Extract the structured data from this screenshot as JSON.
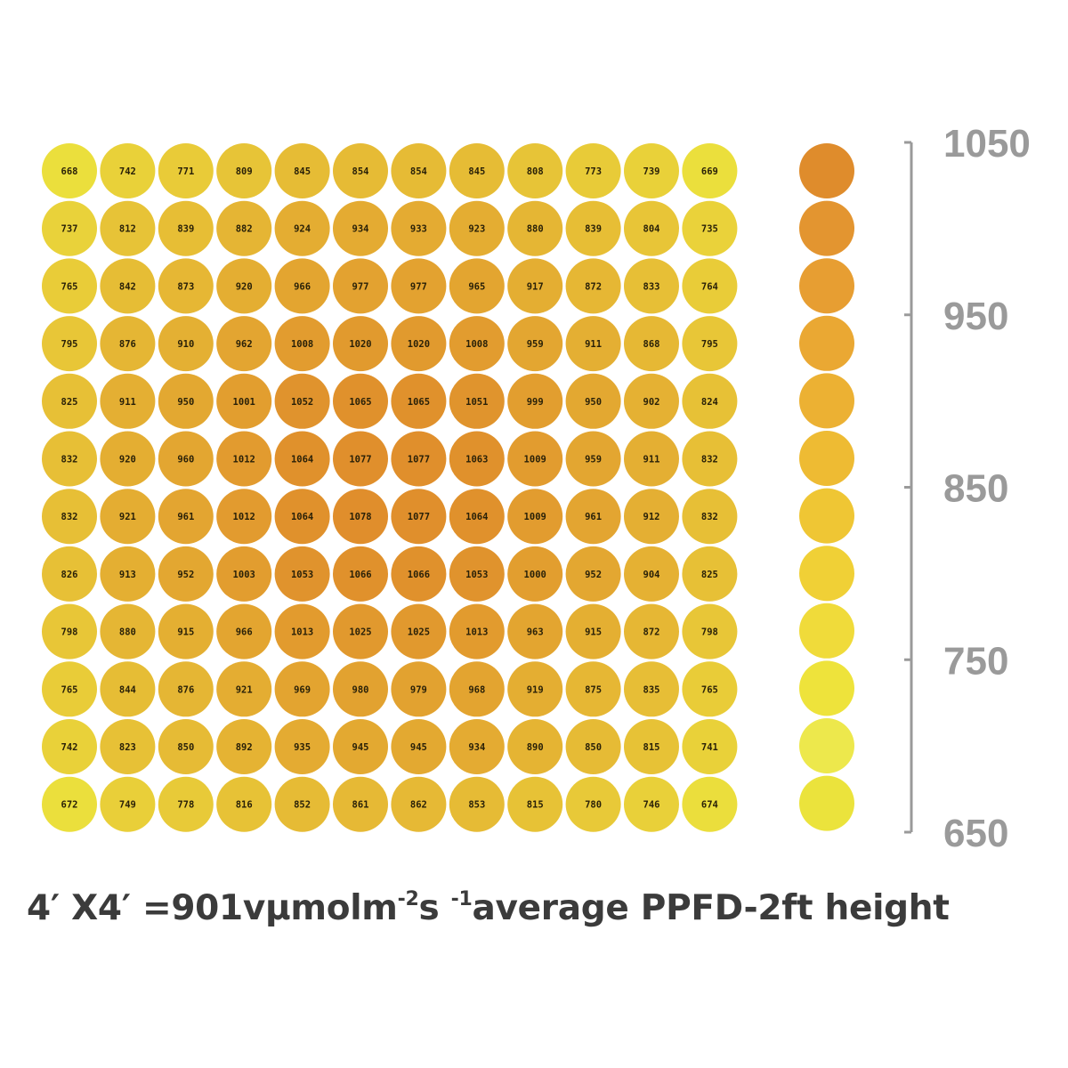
{
  "chart_data": {
    "type": "heatmap",
    "rows": [
      [
        668,
        742,
        771,
        809,
        845,
        854,
        854,
        845,
        808,
        773,
        739,
        669
      ],
      [
        737,
        812,
        839,
        882,
        924,
        934,
        933,
        923,
        880,
        839,
        804,
        735
      ],
      [
        765,
        842,
        873,
        920,
        966,
        977,
        977,
        965,
        917,
        872,
        833,
        764
      ],
      [
        795,
        876,
        910,
        962,
        1008,
        1020,
        1020,
        1008,
        959,
        911,
        868,
        795
      ],
      [
        825,
        911,
        950,
        1001,
        1052,
        1065,
        1065,
        1051,
        999,
        950,
        902,
        824
      ],
      [
        832,
        920,
        960,
        1012,
        1064,
        1077,
        1077,
        1063,
        1009,
        959,
        911,
        832
      ],
      [
        832,
        921,
        961,
        1012,
        1064,
        1078,
        1077,
        1064,
        1009,
        961,
        912,
        832
      ],
      [
        826,
        913,
        952,
        1003,
        1053,
        1066,
        1066,
        1053,
        1000,
        952,
        904,
        825
      ],
      [
        798,
        880,
        915,
        966,
        1013,
        1025,
        1025,
        1013,
        963,
        915,
        872,
        798
      ],
      [
        765,
        844,
        876,
        921,
        969,
        980,
        979,
        968,
        919,
        875,
        835,
        765
      ],
      [
        742,
        823,
        850,
        892,
        935,
        945,
        945,
        934,
        890,
        850,
        815,
        741
      ],
      [
        672,
        749,
        778,
        816,
        852,
        861,
        862,
        853,
        815,
        780,
        746,
        674
      ]
    ],
    "scale": {
      "min": 650,
      "max": 1050,
      "tick_labels": [
        "1050",
        "950",
        "850",
        "750",
        "650"
      ],
      "swatch_colors": [
        "#df8c2c",
        "#e39530",
        "#e79e32",
        "#eaa833",
        "#ecb133",
        "#eebb33",
        "#efc634",
        "#f0d036",
        "#f0db3a",
        "#eee33b",
        "#ede84c",
        "#ebe33c"
      ]
    },
    "colors": {
      "low": "#ece33d",
      "high": "#df8a2b",
      "axis": "#9a9a9a"
    }
  },
  "caption": {
    "part1": "4′ X4′ =901vμmolm",
    "sup1": "-2",
    "part2": "s ",
    "sup2": "-1",
    "part3": "average PPFD-2ft height"
  }
}
